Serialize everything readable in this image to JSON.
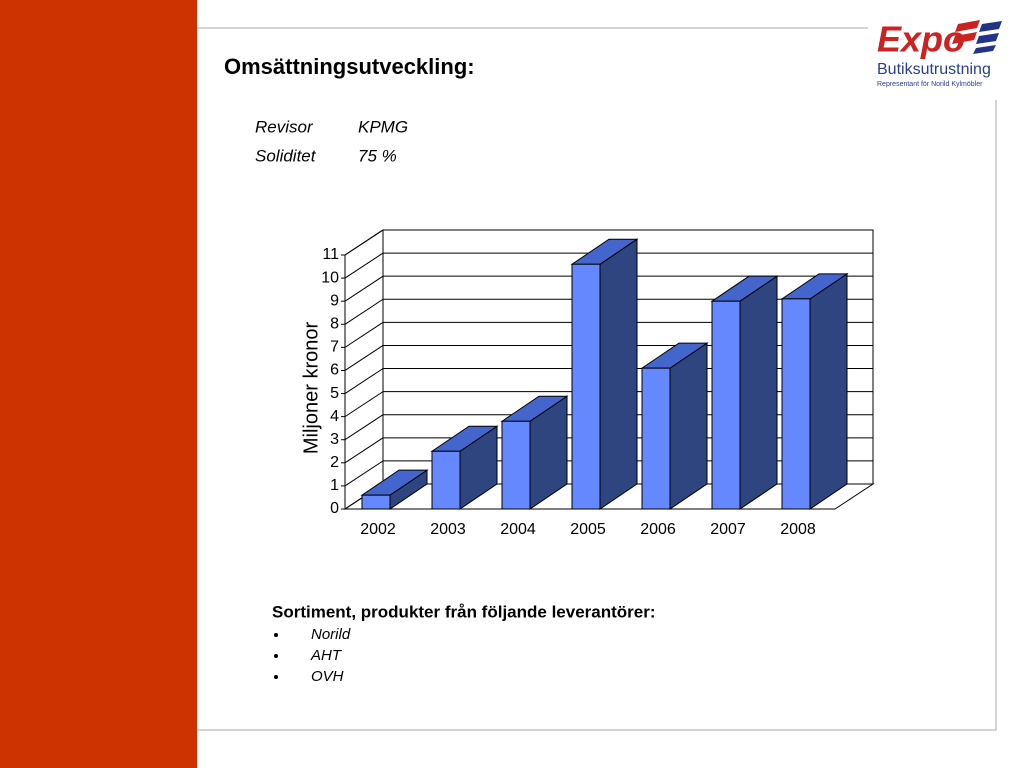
{
  "header": {
    "title": "Omsättningsutveckling:"
  },
  "logo": {
    "brand": "Expo",
    "name": "Butiksutrustning",
    "tagline": "Representant för Norild Kylmöbler"
  },
  "info": [
    [
      "Revisor",
      "KPMG"
    ],
    [
      "Soliditet",
      "75 %"
    ]
  ],
  "chart_data": {
    "type": "bar",
    "categories": [
      "2002",
      "2003",
      "2004",
      "2005",
      "2006",
      "2007",
      "2008"
    ],
    "values": [
      0.6,
      2.5,
      3.8,
      10.6,
      6.1,
      9.0,
      9.1
    ],
    "color": "#6688ff",
    "y_label": "Miljoner kronor",
    "ylim": [
      0,
      11
    ],
    "yticks": [
      0,
      1,
      2,
      3,
      4,
      5,
      6,
      7,
      8,
      9,
      10,
      11
    ],
    "grid": true
  },
  "suppliers": {
    "heading": "Sortiment, produkter från följande leverantörer:",
    "items": [
      "Norild",
      "AHT",
      "OVH"
    ]
  }
}
